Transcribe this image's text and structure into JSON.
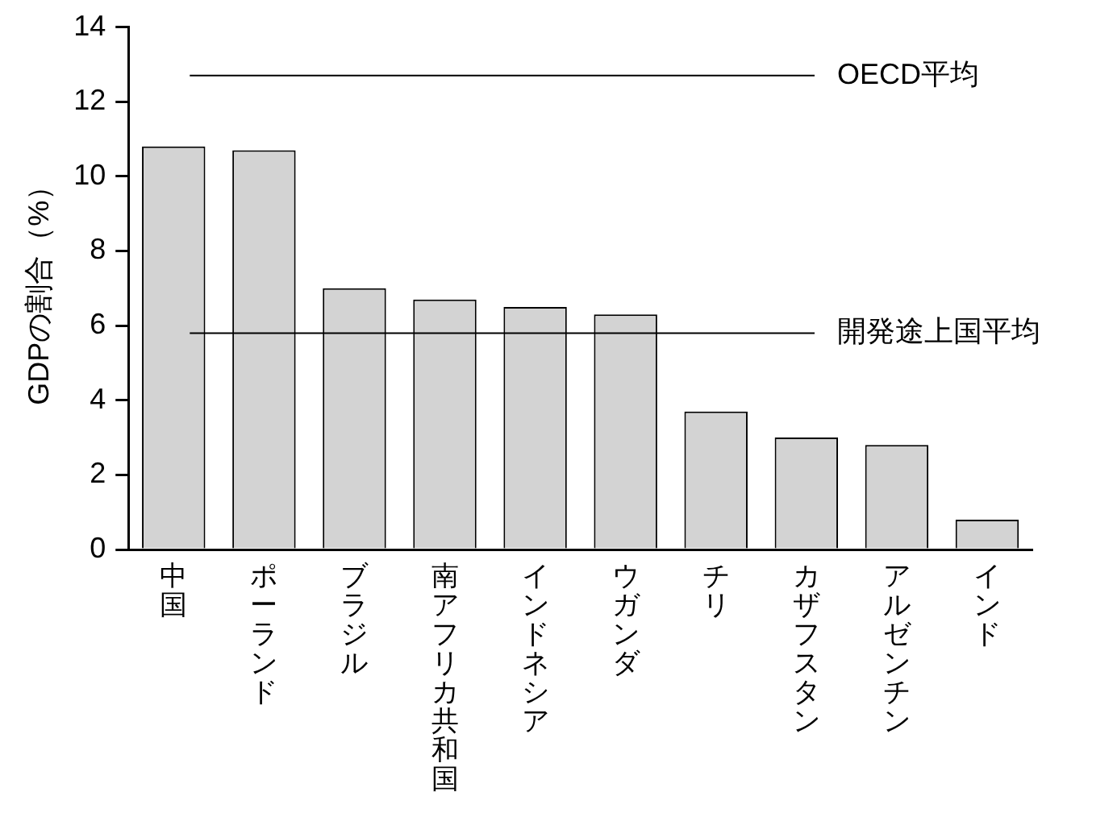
{
  "chart_data": {
    "type": "bar",
    "ylabel": "GDPの割合（%）",
    "categories": [
      "中国",
      "ポーランド",
      "ブラジル",
      "南アフリカ共和国",
      "インドネシア",
      "ウガンダ",
      "チリ",
      "カザフスタン",
      "アルゼンチン",
      "インド"
    ],
    "values": [
      10.8,
      10.7,
      7.0,
      6.7,
      6.5,
      6.3,
      3.7,
      3.0,
      2.8,
      0.8
    ],
    "color": "#d3d3d3",
    "ylim": [
      0,
      14
    ],
    "yticks": [
      0,
      2,
      4,
      6,
      8,
      10,
      12,
      14
    ],
    "ref_lines": [
      {
        "axis": "y",
        "value": 12.7,
        "label": "OECD平均"
      },
      {
        "axis": "y",
        "value": 5.8,
        "label": "開発途上国平均"
      }
    ]
  }
}
